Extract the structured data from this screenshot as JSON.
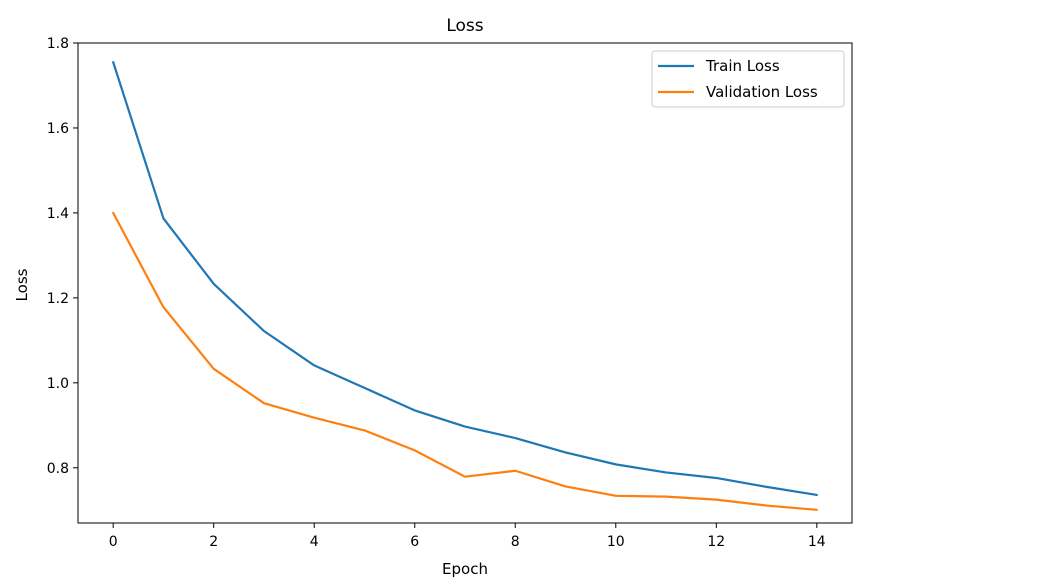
{
  "chart_data": {
    "type": "line",
    "title": "Loss",
    "xlabel": "Epoch",
    "ylabel": "Loss",
    "xlim": [
      -0.7,
      14.7
    ],
    "ylim": [
      0.67,
      1.8
    ],
    "xticks": [
      0,
      2,
      4,
      6,
      8,
      10,
      12,
      14
    ],
    "yticks": [
      0.8,
      1.0,
      1.2,
      1.4,
      1.6,
      1.8
    ],
    "ytick_labels": [
      "0.8",
      "1.0",
      "1.2",
      "1.4",
      "1.6",
      "1.8"
    ],
    "grid": false,
    "legend_position": "top-right",
    "x": [
      0,
      1,
      2,
      3,
      4,
      5,
      6,
      7,
      8,
      9,
      10,
      11,
      12,
      13,
      14
    ],
    "series": [
      {
        "name": "Train Loss",
        "color": "#1f77b4",
        "values": [
          1.755,
          1.387,
          1.233,
          1.122,
          1.041,
          0.988,
          0.935,
          0.897,
          0.87,
          0.836,
          0.808,
          0.789,
          0.776,
          0.755,
          0.736
        ]
      },
      {
        "name": "Validation Loss",
        "color": "#ff7f0e",
        "values": [
          1.4,
          1.178,
          1.033,
          0.952,
          0.918,
          0.888,
          0.841,
          0.779,
          0.793,
          0.756,
          0.734,
          0.732,
          0.725,
          0.711,
          0.701
        ]
      }
    ]
  }
}
